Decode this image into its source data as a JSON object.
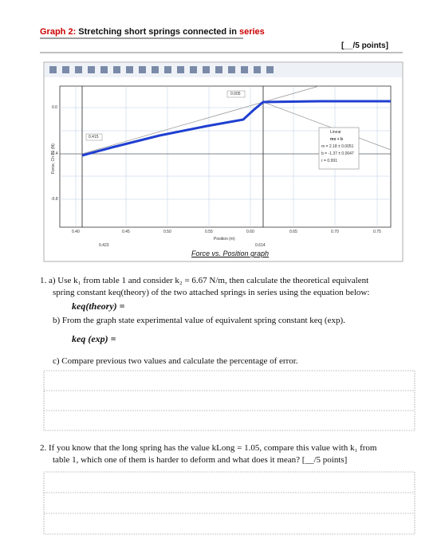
{
  "header": {
    "graph_label": "Graph 2:",
    "title": " Stretching short springs connected in ",
    "title_end": "series",
    "points": "[__/5 points]"
  },
  "graph": {
    "y_axis_label": "Force, Ch P1 (N)",
    "x_axis_label": "Position (m)",
    "yticks": [
      "0.0",
      "-0.4",
      "-0.8"
    ],
    "xticks": [
      "0.40",
      "0.45",
      "0.50",
      "0.55",
      "0.60",
      "0.65",
      "0.70",
      "0.75"
    ],
    "callouts": [
      "0.005",
      "0.415",
      "0.423",
      "0.614"
    ],
    "fit": {
      "title": "Linear",
      "equation": "mx + b",
      "m": "m = 2.18 ± 0.0051",
      "b": "b = -1.37 ± 0.0047",
      "r": "r = 0.991"
    },
    "caption": "Force vs. Position graph"
  },
  "questions": {
    "q1a_line1": "1.  a) Use k₁ from table 1 and consider k₂ = 6.67 N/m, then calculate the theoretical equivalent",
    "q1a_line2": "spring constant keq(theory) of the two attached springs in series using the equation below:",
    "formula_theory": "keq(theory) =",
    "q1b": "b)  From the graph state experimental value of equivalent spring constant keq (exp).",
    "formula_exp": "keq (exp) =",
    "q1c": "c)  Compare previous two values and calculate the percentage of error.",
    "q2_line1": "2.  If you know that the long spring has the value kLong = 1.05, compare this value with k₁ from",
    "q2_line2": "table 1, which one of them is harder to deform and what does it mean? [__/5 points]"
  }
}
